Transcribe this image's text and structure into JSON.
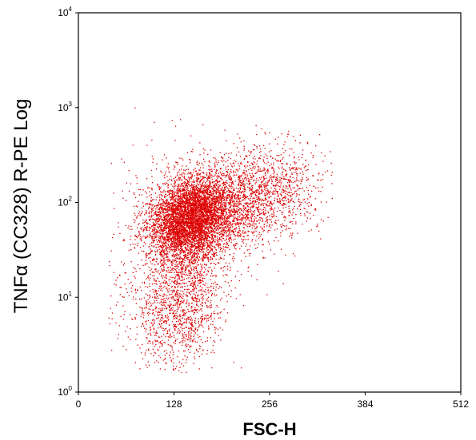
{
  "chart_data": {
    "type": "scatter",
    "title": "",
    "xlabel": "FSC-H",
    "ylabel_main": "TNF",
    "ylabel_greek": "α",
    "ylabel_rest": " (CC328) R-PE Log",
    "x_ticks": [
      "0",
      "128",
      "256",
      "384",
      "512"
    ],
    "x_tick_values": [
      0,
      128,
      256,
      384,
      512
    ],
    "y_ticks": [
      {
        "base": "10",
        "exp": "0",
        "value": 1
      },
      {
        "base": "10",
        "exp": "1",
        "value": 10
      },
      {
        "base": "10",
        "exp": "2",
        "value": 100
      },
      {
        "base": "10",
        "exp": "3",
        "value": 1000
      },
      {
        "base": "10",
        "exp": "4",
        "value": 10000
      }
    ],
    "xlim": [
      0,
      512
    ],
    "ylim": [
      1,
      10000
    ],
    "yscale": "log",
    "grid": false,
    "point_color": "#dd0000",
    "point_count": 9000,
    "series": [
      {
        "clusters": [
          {
            "x_mean": 150,
            "x_sd": 28,
            "log_y_mean": 1.83,
            "log_y_sd": 0.22,
            "weight": 0.58
          },
          {
            "x_mean": 230,
            "x_sd": 45,
            "log_y_mean": 2.05,
            "log_y_sd": 0.25,
            "weight": 0.22
          },
          {
            "x_mean": 135,
            "x_sd": 30,
            "log_y_mean": 0.95,
            "log_y_sd": 0.35,
            "weight": 0.15
          },
          {
            "x_mean": 120,
            "x_sd": 50,
            "log_y_mean": 1.6,
            "log_y_sd": 0.6,
            "weight": 0.05
          }
        ]
      }
    ]
  }
}
